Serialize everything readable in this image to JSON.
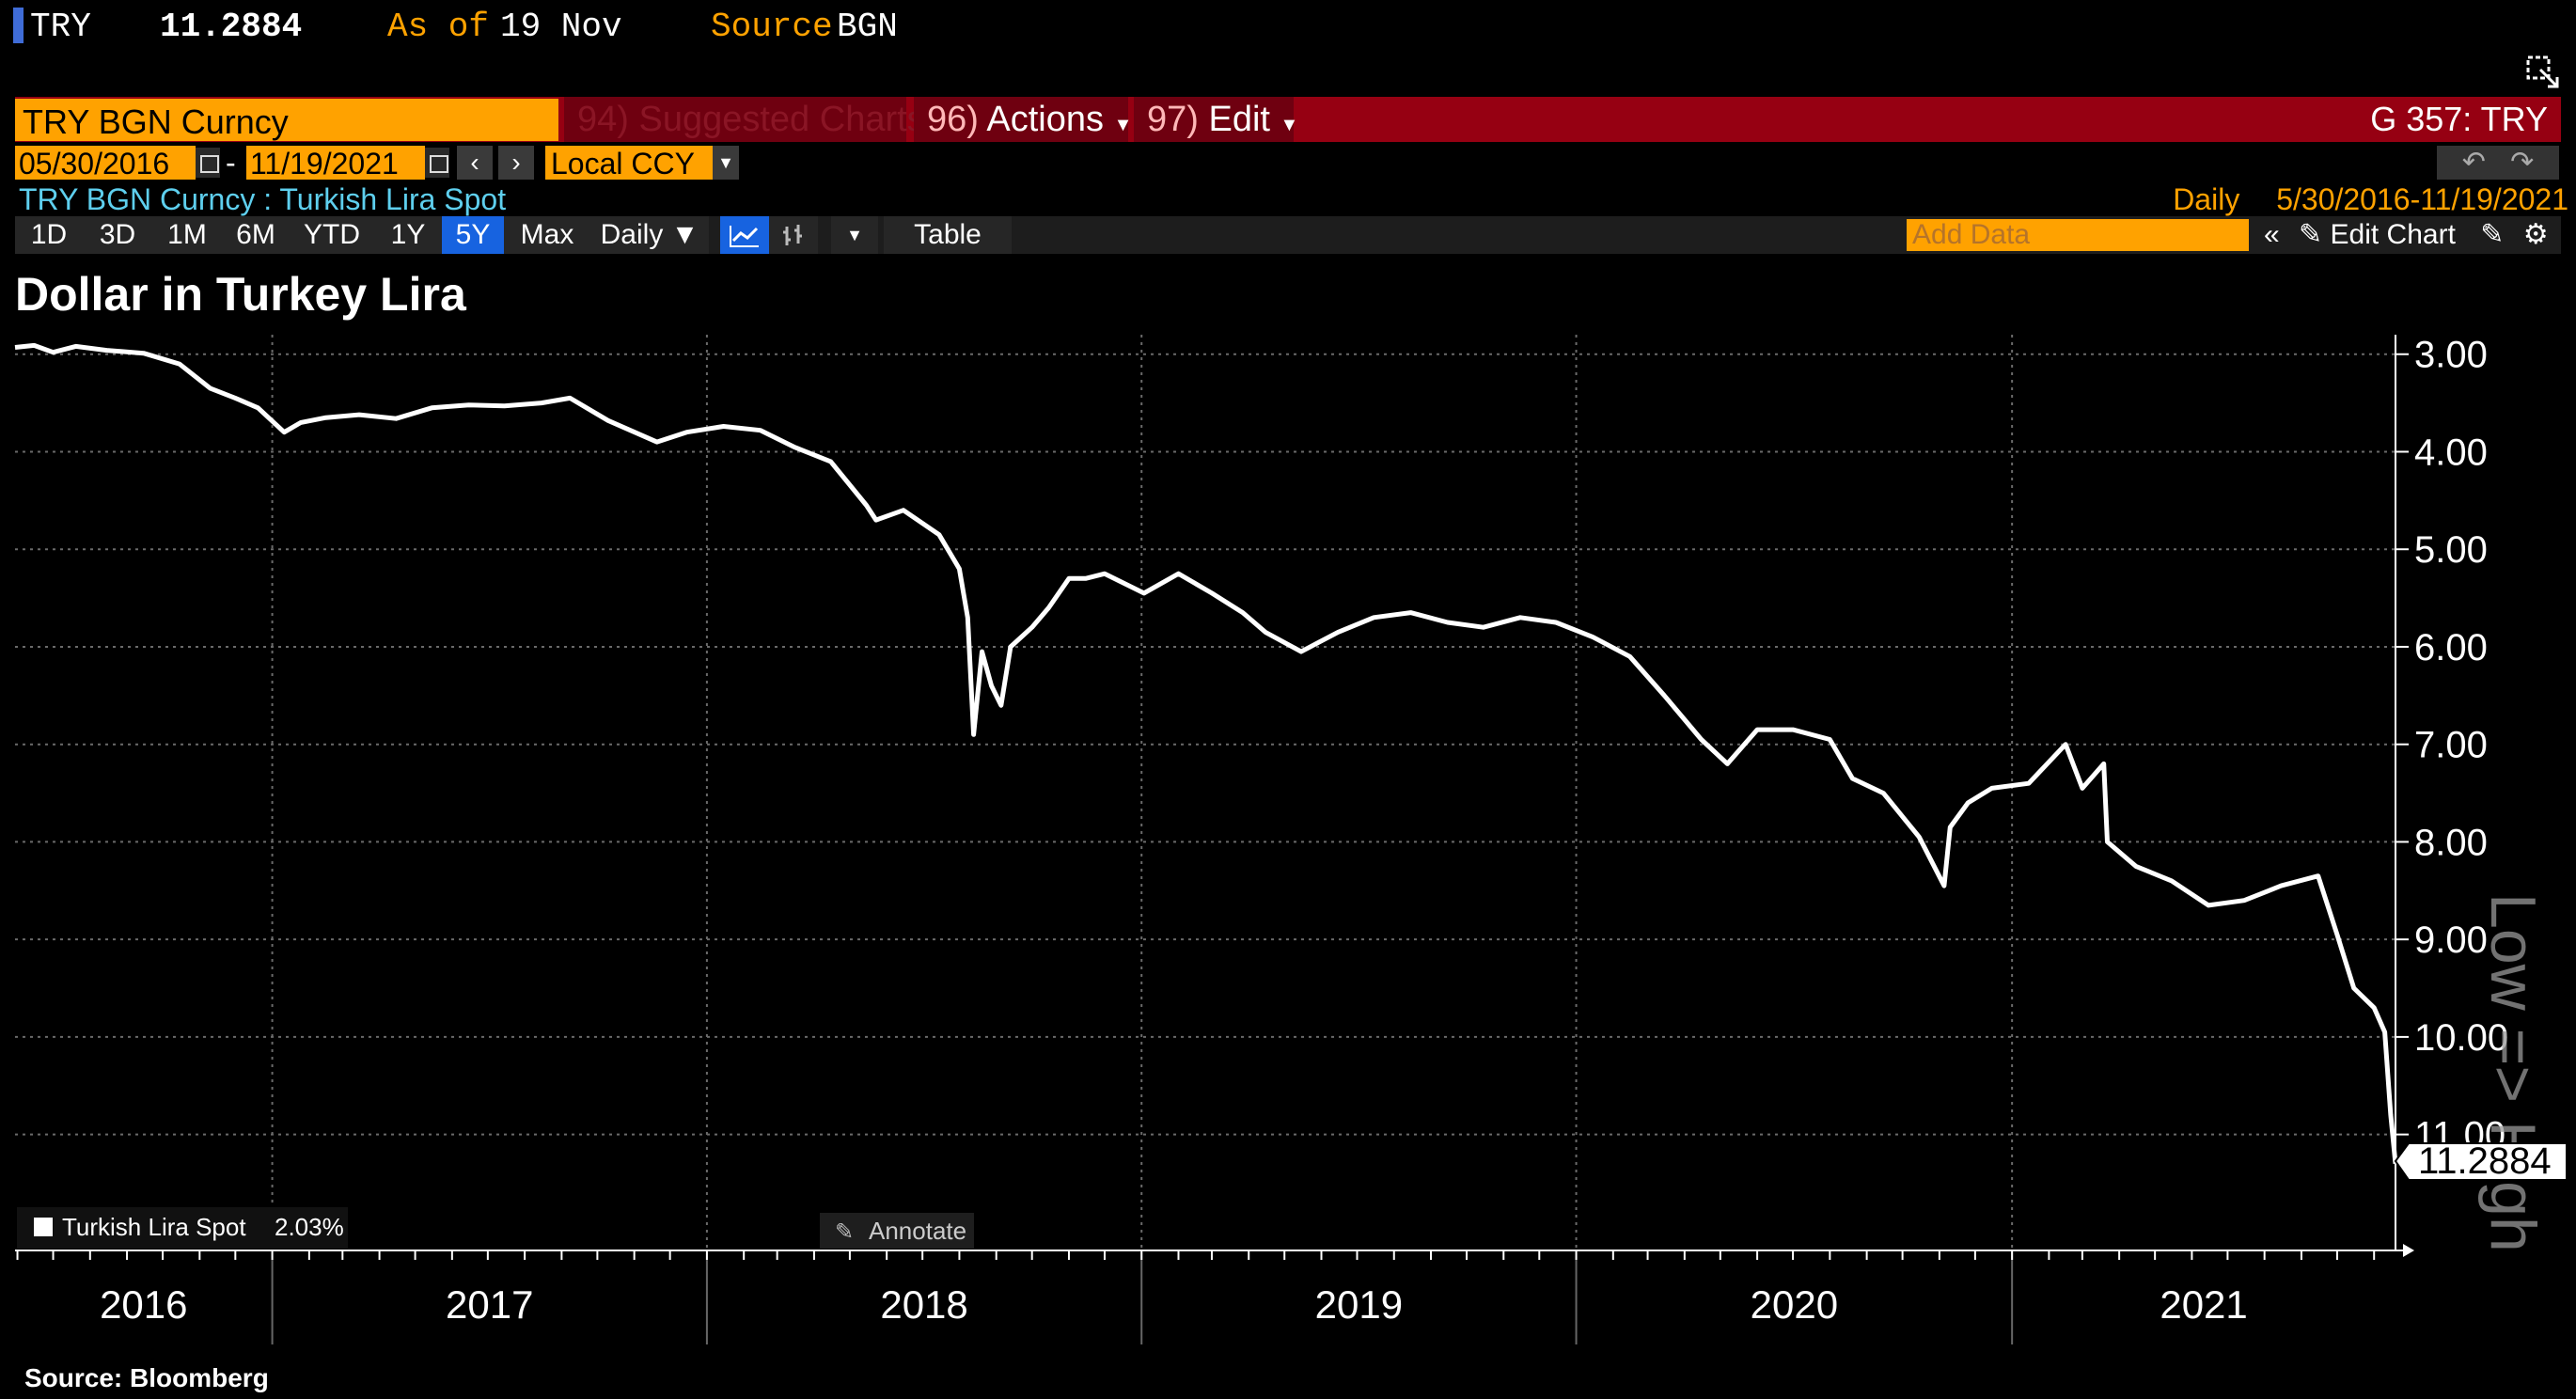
{
  "quote": {
    "ticker": "TRY",
    "price": "11.2884",
    "asof_label": "As of",
    "asof_value": "19 Nov",
    "source_label": "Source",
    "source_value": "BGN"
  },
  "menubar": {
    "security": "TRY BGN Curncy",
    "suggested": {
      "num": "94)",
      "label": "Suggested Charts"
    },
    "actions": {
      "num": "96)",
      "label": "Actions"
    },
    "edit": {
      "num": "97)",
      "label": "Edit"
    },
    "function": "G 357: TRY"
  },
  "dates": {
    "start": "05/30/2016",
    "sep": "-",
    "end": "11/19/2021",
    "currency": "Local CCY"
  },
  "info": {
    "description": "TRY BGN Curncy : Turkish Lira Spot",
    "frequency": "Daily",
    "range": "5/30/2016-11/19/2021"
  },
  "toolbar": {
    "periods": [
      "1D",
      "3D",
      "1M",
      "6M",
      "YTD",
      "1Y",
      "5Y",
      "Max"
    ],
    "active_period": "5Y",
    "frequency": "Daily ▼",
    "table": "Table",
    "add_data_placeholder": "Add Data",
    "edit_chart": "Edit Chart"
  },
  "chart_data": {
    "type": "line",
    "title": "Dollar in Turkey Lira",
    "y_annotation": "Low => High",
    "y_inverted": true,
    "ylim": [
      2.8,
      11.9
    ],
    "yticks": [
      "3.00",
      "4.00",
      "5.00",
      "6.00",
      "7.00",
      "8.00",
      "9.00",
      "10.00",
      "11.00"
    ],
    "xticks": [
      "2016",
      "2017",
      "2018",
      "2019",
      "2020",
      "2021"
    ],
    "xlim": [
      "2016-05-30",
      "2021-11-19"
    ],
    "grid": true,
    "legend": {
      "label": "Turkish Lira Spot",
      "change": "2.03%",
      "position": "bottom-left"
    },
    "annotate_label": "Annotate",
    "last_value": "11.2884",
    "series": [
      {
        "name": "Turkish Lira Spot",
        "color": "#ffffff",
        "x": [
          "2016-05-30",
          "2016-06-15",
          "2016-07-01",
          "2016-07-20",
          "2016-08-15",
          "2016-09-15",
          "2016-10-15",
          "2016-11-10",
          "2016-12-01",
          "2016-12-20",
          "2017-01-11",
          "2017-01-25",
          "2017-02-15",
          "2017-03-15",
          "2017-04-15",
          "2017-05-15",
          "2017-06-15",
          "2017-07-15",
          "2017-08-15",
          "2017-09-08",
          "2017-10-10",
          "2017-11-20",
          "2017-12-15",
          "2018-01-15",
          "2018-02-15",
          "2018-03-15",
          "2018-04-15",
          "2018-05-15",
          "2018-05-23",
          "2018-06-15",
          "2018-07-15",
          "2018-08-01",
          "2018-08-08",
          "2018-08-13",
          "2018-08-20",
          "2018-08-28",
          "2018-09-05",
          "2018-09-13",
          "2018-10-01",
          "2018-10-15",
          "2018-11-01",
          "2018-11-15",
          "2018-12-01",
          "2019-01-03",
          "2019-02-01",
          "2019-03-01",
          "2019-03-27",
          "2019-04-15",
          "2019-05-15",
          "2019-06-15",
          "2019-07-15",
          "2019-08-15",
          "2019-09-15",
          "2019-10-15",
          "2019-11-15",
          "2019-12-15",
          "2020-01-15",
          "2020-02-15",
          "2020-03-15",
          "2020-04-15",
          "2020-05-07",
          "2020-06-01",
          "2020-07-01",
          "2020-08-01",
          "2020-08-20",
          "2020-09-15",
          "2020-10-15",
          "2020-11-05",
          "2020-11-10",
          "2020-11-25",
          "2020-12-15",
          "2021-01-15",
          "2021-02-15",
          "2021-03-01",
          "2021-03-19",
          "2021-03-22",
          "2021-04-15",
          "2021-05-15",
          "2021-06-15",
          "2021-07-15",
          "2021-08-15",
          "2021-09-15",
          "2021-10-01",
          "2021-10-15",
          "2021-11-01",
          "2021-11-10",
          "2021-11-15",
          "2021-11-19"
        ],
        "y": [
          2.93,
          2.91,
          2.98,
          2.92,
          2.96,
          2.99,
          3.1,
          3.35,
          3.45,
          3.55,
          3.8,
          3.7,
          3.65,
          3.62,
          3.66,
          3.55,
          3.52,
          3.53,
          3.5,
          3.45,
          3.68,
          3.9,
          3.8,
          3.74,
          3.78,
          3.95,
          4.1,
          4.55,
          4.7,
          4.6,
          4.85,
          5.2,
          5.7,
          6.9,
          6.05,
          6.4,
          6.6,
          6.0,
          5.8,
          5.6,
          5.3,
          5.3,
          5.25,
          5.45,
          5.25,
          5.45,
          5.65,
          5.85,
          6.05,
          5.85,
          5.7,
          5.65,
          5.75,
          5.8,
          5.7,
          5.75,
          5.9,
          6.1,
          6.5,
          6.95,
          7.2,
          6.85,
          6.85,
          6.95,
          7.35,
          7.5,
          7.95,
          8.45,
          7.85,
          7.6,
          7.45,
          7.4,
          7.0,
          7.45,
          7.2,
          8.0,
          8.25,
          8.4,
          8.65,
          8.6,
          8.45,
          8.35,
          8.95,
          9.5,
          9.7,
          9.95,
          10.8,
          11.3
        ]
      }
    ]
  },
  "footer": {
    "source": "Source: Bloomberg"
  }
}
